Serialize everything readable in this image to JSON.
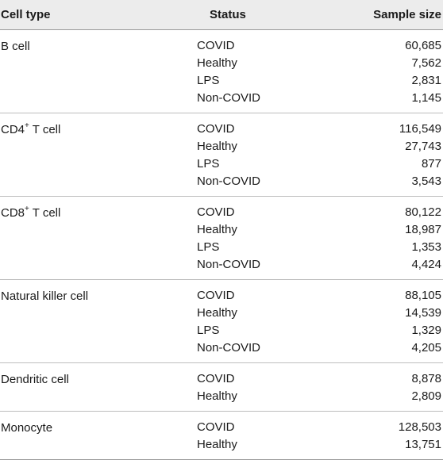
{
  "header": {
    "cell_type": "Cell type",
    "status": "Status",
    "sample_size": "Sample size"
  },
  "groups": [
    {
      "cell_type": "B cell",
      "sup": "",
      "suffix": "",
      "rows": [
        {
          "status": "COVID",
          "size": "60,685"
        },
        {
          "status": "Healthy",
          "size": "7,562"
        },
        {
          "status": "LPS",
          "size": "2,831"
        },
        {
          "status": "Non-COVID",
          "size": "1,145"
        }
      ]
    },
    {
      "cell_type": "CD4",
      "sup": "+",
      "suffix": " T cell",
      "rows": [
        {
          "status": "COVID",
          "size": "116,549"
        },
        {
          "status": "Healthy",
          "size": "27,743"
        },
        {
          "status": "LPS",
          "size": "877"
        },
        {
          "status": "Non-COVID",
          "size": "3,543"
        }
      ]
    },
    {
      "cell_type": "CD8",
      "sup": "+",
      "suffix": " T cell",
      "rows": [
        {
          "status": "COVID",
          "size": "80,122"
        },
        {
          "status": "Healthy",
          "size": "18,987"
        },
        {
          "status": "LPS",
          "size": "1,353"
        },
        {
          "status": "Non-COVID",
          "size": "4,424"
        }
      ]
    },
    {
      "cell_type": "Natural killer cell",
      "sup": "",
      "suffix": "",
      "rows": [
        {
          "status": "COVID",
          "size": "88,105"
        },
        {
          "status": "Healthy",
          "size": "14,539"
        },
        {
          "status": "LPS",
          "size": "1,329"
        },
        {
          "status": "Non-COVID",
          "size": "4,205"
        }
      ]
    },
    {
      "cell_type": "Dendritic cell",
      "sup": "",
      "suffix": "",
      "rows": [
        {
          "status": "COVID",
          "size": "8,878"
        },
        {
          "status": "Healthy",
          "size": "2,809"
        }
      ]
    },
    {
      "cell_type": "Monocyte",
      "sup": "",
      "suffix": "",
      "rows": [
        {
          "status": "COVID",
          "size": "128,503"
        },
        {
          "status": "Healthy",
          "size": "13,751"
        }
      ]
    }
  ]
}
